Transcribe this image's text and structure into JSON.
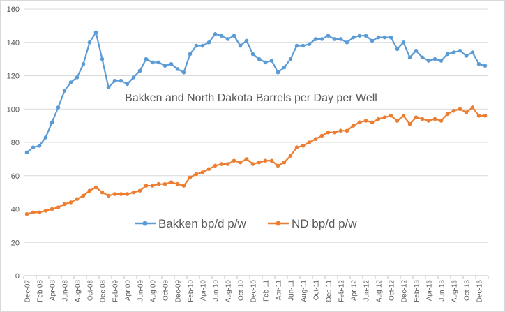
{
  "chart_data": {
    "type": "line",
    "title": "Bakken and North Dakota Barrels per Day per Well",
    "xlabel": "",
    "ylabel": "",
    "ylim": [
      0,
      160
    ],
    "yticks": [
      0,
      20,
      40,
      60,
      80,
      100,
      120,
      140,
      160
    ],
    "grid": true,
    "legend": "center",
    "x_tick_labels": [
      "Dec-07",
      "Feb-08",
      "Apr-08",
      "Jun-08",
      "Aug-08",
      "Oct-08",
      "Dec-08",
      "Feb-09",
      "Apr-09",
      "Jun-09",
      "Aug-09",
      "Oct-09",
      "Dec-09",
      "Feb-10",
      "Apr-10",
      "Jun-10",
      "Aug-10",
      "Oct-10",
      "Dec-10",
      "Feb-11",
      "Apr-11",
      "Jun-11",
      "Aug-11",
      "Oct-11",
      "Dec-11",
      "Feb-12",
      "Apr-12",
      "Jun-12",
      "Aug-12",
      "Oct-12",
      "Dec-12",
      "Feb-13",
      "Apr-13",
      "Jun-13",
      "Aug-13",
      "Oct-13",
      "Dec-13"
    ],
    "series": [
      {
        "name": "Bakken bp/d p/w",
        "color": "#5b9bd5",
        "values": [
          74,
          77,
          78,
          83,
          92,
          101,
          111,
          116,
          119,
          127,
          140,
          146,
          130,
          113,
          117,
          117,
          115,
          119,
          123,
          130,
          128,
          128,
          126,
          127,
          124,
          122,
          133,
          138,
          138,
          140,
          145,
          144,
          142,
          144,
          138,
          141,
          133,
          130,
          128,
          129,
          122,
          125,
          130,
          138,
          138,
          139,
          142,
          142,
          144,
          142,
          142,
          140,
          143,
          144,
          144,
          141,
          143,
          143,
          143,
          136,
          140,
          131,
          135,
          131,
          129,
          130,
          129,
          133,
          134,
          135,
          132,
          134,
          127,
          126
        ]
      },
      {
        "name": "ND bp/d p/w",
        "color": "#ed7d31",
        "values": [
          37,
          38,
          38,
          39,
          40,
          41,
          43,
          44,
          46,
          48,
          51,
          53,
          50,
          48,
          49,
          49,
          49,
          50,
          51,
          54,
          54,
          55,
          55,
          56,
          55,
          54,
          59,
          61,
          62,
          64,
          66,
          67,
          67,
          69,
          68,
          70,
          67,
          68,
          69,
          69,
          66,
          68,
          72,
          77,
          78,
          80,
          82,
          84,
          86,
          86,
          87,
          87,
          90,
          92,
          93,
          92,
          94,
          95,
          96,
          93,
          96,
          91,
          95,
          94,
          93,
          94,
          93,
          97,
          99,
          100,
          98,
          101,
          96,
          96
        ]
      }
    ]
  }
}
